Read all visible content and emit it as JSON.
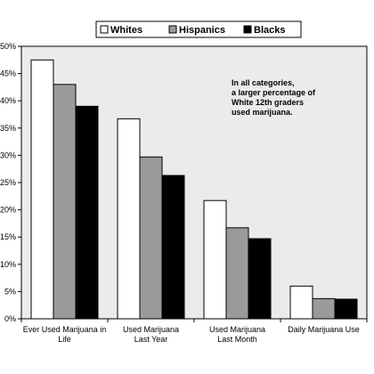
{
  "chart_data": {
    "type": "bar",
    "categories": [
      [
        "Ever Used Marijuana in",
        "Life"
      ],
      [
        "Used Marijuana",
        "Last Year"
      ],
      [
        "Used Marijuana",
        "Last Month"
      ],
      [
        "Daily Marijuana Use"
      ]
    ],
    "series": [
      {
        "name": "Whites",
        "values": [
          47.5,
          36.7,
          21.7,
          6.0
        ],
        "color": "#ffffff"
      },
      {
        "name": "Hispanics",
        "values": [
          43.0,
          29.7,
          16.7,
          3.7
        ],
        "color": "#9a9a9a"
      },
      {
        "name": "Blacks",
        "values": [
          39.0,
          26.3,
          14.7,
          3.6
        ],
        "color": "#000000"
      }
    ],
    "ylim": [
      0,
      50
    ],
    "ytick_step": 5,
    "ytick_suffix": "%",
    "grid": false,
    "legend_position": "top-center",
    "plot_background": "#ebebeb",
    "annotation": [
      "In all categories,",
      "a larger percentage of",
      "White 12th graders",
      "used marijuana."
    ]
  }
}
